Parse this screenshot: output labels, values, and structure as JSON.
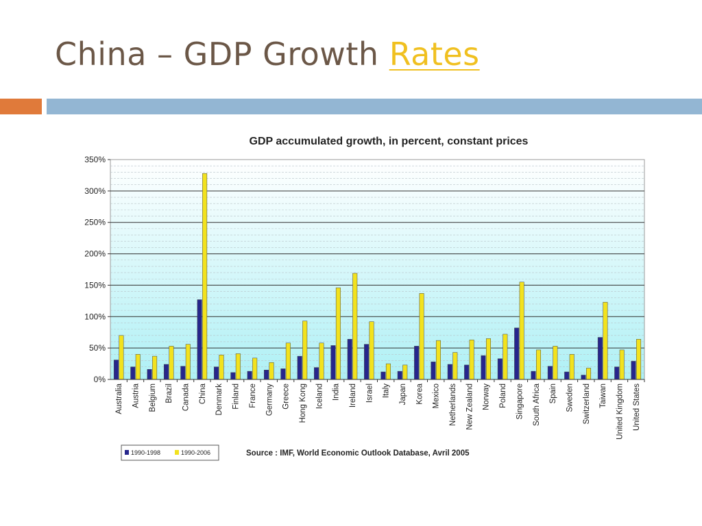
{
  "slide": {
    "title_main": "China – GDP Growth",
    "title_link": "Rates"
  },
  "colors": {
    "title": "#6b5747",
    "link": "#f0c020",
    "accent_orange": "#e07a3a",
    "accent_blue": "#93b6d3",
    "series_1990_1998": "#26268c",
    "series_1990_2006": "#f2e21e",
    "plot_bg_top": "#ffffff",
    "plot_bg_bottom": "#aef0f5"
  },
  "chart_data": {
    "type": "bar",
    "title": "GDP accumulated growth, in percent, constant prices",
    "xlabel": "",
    "ylabel": "",
    "ylim": [
      0,
      350
    ],
    "y_ticks": [
      "0%",
      "50%",
      "100%",
      "150%",
      "200%",
      "250%",
      "300%",
      "350%"
    ],
    "grid": true,
    "legend_position": "bottom-left",
    "source": "Source : IMF, World Economic Outlook Database, Avril 2005",
    "categories": [
      "Australia",
      "Austria",
      "Belgium",
      "Brazil",
      "Canada",
      "China",
      "Denmark",
      "Finland",
      "France",
      "Germany",
      "Greece",
      "Hong Kong",
      "Iceland",
      "India",
      "Ireland",
      "Israel",
      "Italy",
      "Japan",
      "Korea",
      "Mexico",
      "Netherlands",
      "New Zealand",
      "Norway",
      "Poland",
      "Singapore",
      "South Africa",
      "Spain",
      "Sweden",
      "Switzerland",
      "Taiwan",
      "United Kingdom",
      "United States"
    ],
    "series": [
      {
        "name": "1990-1998",
        "values": [
          31,
          20,
          16,
          24,
          21,
          127,
          20,
          11,
          13,
          15,
          17,
          37,
          19,
          54,
          64,
          56,
          12,
          13,
          53,
          28,
          24,
          23,
          38,
          33,
          82,
          13,
          21,
          12,
          7,
          67,
          20,
          29
        ]
      },
      {
        "name": "1990-2006",
        "values": [
          70,
          40,
          37,
          53,
          56,
          328,
          39,
          41,
          34,
          27,
          58,
          93,
          58,
          146,
          169,
          92,
          25,
          23,
          137,
          62,
          43,
          63,
          65,
          72,
          155,
          47,
          53,
          40,
          18,
          123,
          47,
          64
        ]
      }
    ]
  }
}
